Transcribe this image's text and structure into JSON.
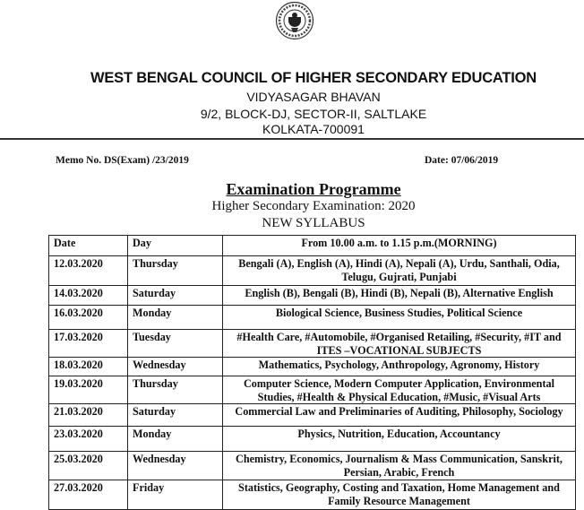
{
  "header": {
    "logo": "wbchse-seal-logo",
    "organization": "WEST BENGAL COUNCIL OF HIGHER SECONDARY EDUCATION",
    "address_lines": [
      "VIDYASAGAR BHAVAN",
      "9/2, BLOCK-DJ, SECTOR-II, SALTLAKE",
      "KOLKATA-700091"
    ]
  },
  "memo": {
    "number": "Memo No. DS(Exam) /23/2019",
    "date": "Date: 07/06/2019"
  },
  "heading": "Examination Programme",
  "subheading": "Higher Secondary Examination: 2020",
  "syllabus": "NEW SYLLABUS",
  "table": {
    "headers": [
      "Date",
      "Day",
      "From 10.00 a.m. to 1.15 p.m.(MORNING)"
    ],
    "rows": [
      {
        "date": "12.03.2020",
        "day": "Thursday",
        "subjects": "Bengali (A), English (A), Hindi (A), Nepali (A), Urdu, Santhali, Odia, Telugu, Gujrati, Punjabi"
      },
      {
        "date": "14.03.2020",
        "day": "Saturday",
        "subjects": "English (B), Bengali (B), Hindi (B), Nepali (B), Alternative English"
      },
      {
        "date": "16.03.2020",
        "day": "Monday",
        "subjects": "Biological Science, Business Studies, Political Science"
      },
      {
        "date": "17.03.2020",
        "day": "Tuesday",
        "subjects": "#Health Care, #Automobile, #Organised Retailing, #Security, #IT and ITES –VOCATIONAL SUBJECTS"
      },
      {
        "date": "18.03.2020",
        "day": "Wednesday",
        "subjects": "Mathematics, Psychology, Anthropology, Agronomy, History"
      },
      {
        "date": "19.03.2020",
        "day": "Thursday",
        "subjects": "Computer Science, Modern Computer Application, Environmental Studies, #Health & Physical Education, #Music, #Visual Arts"
      },
      {
        "date": "21.03.2020",
        "day": "Saturday",
        "subjects": "Commercial Law and Preliminaries of Auditing, Philosophy, Sociology"
      },
      {
        "date": "23.03.2020",
        "day": "Monday",
        "subjects": "Physics, Nutrition, Education, Accountancy"
      },
      {
        "date": "25.03.2020",
        "day": "Wednesday",
        "subjects": "Chemistry, Economics, Journalism & Mass Communication, Sanskrit, Persian, Arabic, French"
      },
      {
        "date": "27.03.2020",
        "day": "Friday",
        "subjects": "Statistics, Geography, Costing and Taxation, Home Management and Family Resource Management"
      }
    ]
  }
}
